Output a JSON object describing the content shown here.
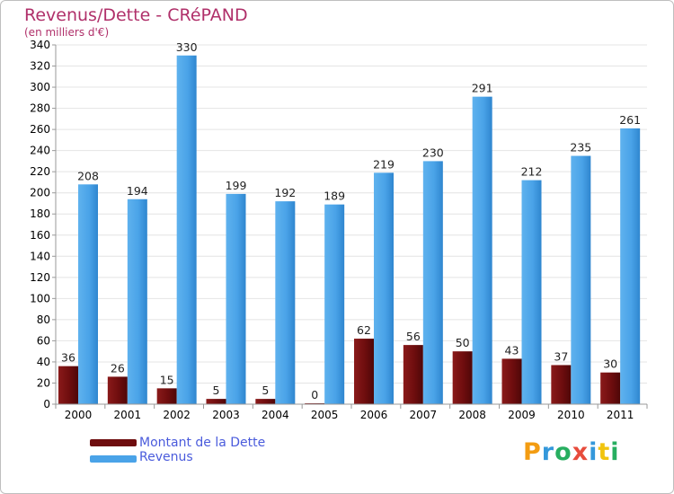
{
  "chart_data": {
    "type": "bar",
    "title": "Revenus/Dette - CRéPAND",
    "subtitle": "(en milliers d'€)",
    "xlabel": "",
    "ylabel": "",
    "ylim": [
      0,
      340
    ],
    "yticks": [
      0,
      20,
      40,
      60,
      80,
      100,
      120,
      140,
      160,
      180,
      200,
      220,
      240,
      260,
      280,
      300,
      320,
      340
    ],
    "categories": [
      "2000",
      "2001",
      "2002",
      "2003",
      "2004",
      "2005",
      "2006",
      "2007",
      "2008",
      "2009",
      "2010",
      "2011"
    ],
    "series": [
      {
        "name": "Montant de la Dette",
        "color": "#7a0f10",
        "values": [
          36,
          26,
          15,
          5,
          5,
          0,
          62,
          56,
          50,
          43,
          37,
          30
        ]
      },
      {
        "name": "Revenus",
        "color": "#4aa3e8",
        "values": [
          208,
          194,
          330,
          199,
          192,
          189,
          219,
          230,
          291,
          212,
          235,
          261
        ]
      }
    ],
    "legend_position": "bottom-left"
  },
  "logo": {
    "text": "Proxiti",
    "letters": [
      "P",
      "r",
      "o",
      "x",
      "i",
      "t",
      "i"
    ],
    "colors": [
      "#f39c12",
      "#3498db",
      "#27ae60",
      "#e74c3c",
      "#3498db",
      "#f1c40f",
      "#27ae60"
    ]
  }
}
